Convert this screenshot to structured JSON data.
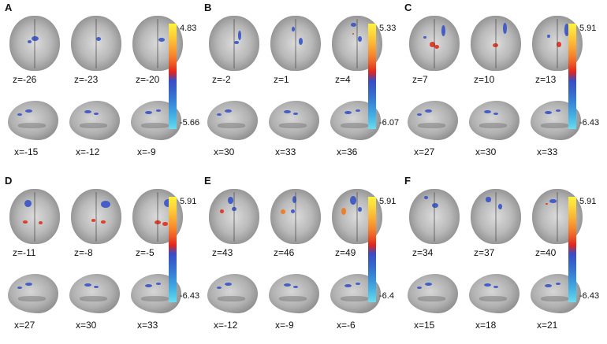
{
  "panels": [
    {
      "letter": "A",
      "axial_labels": [
        "z=-26",
        "z=-23",
        "z=-20"
      ],
      "sagittal_labels": [
        "x=-15",
        "x=-12",
        "x=-9"
      ],
      "colorbar": {
        "max": "4.83",
        "min": "-5.66"
      }
    },
    {
      "letter": "B",
      "axial_labels": [
        "z=-2",
        "z=1",
        "z=4"
      ],
      "sagittal_labels": [
        "x=30",
        "x=33",
        "x=36"
      ],
      "colorbar": {
        "max": "5.33",
        "min": "-6.07"
      }
    },
    {
      "letter": "C",
      "axial_labels": [
        "z=7",
        "z=10",
        "z=13"
      ],
      "sagittal_labels": [
        "x=27",
        "x=30",
        "x=33"
      ],
      "colorbar": {
        "max": "5.91",
        "min": "-6.43"
      }
    },
    {
      "letter": "D",
      "axial_labels": [
        "z=-11",
        "z=-8",
        "z=-5"
      ],
      "sagittal_labels": [
        "x=27",
        "x=30",
        "x=33"
      ],
      "colorbar": {
        "max": "5.91",
        "min": "-6.43"
      }
    },
    {
      "letter": "E",
      "axial_labels": [
        "z=43",
        "z=46",
        "z=49"
      ],
      "sagittal_labels": [
        "x=-12",
        "x=-9",
        "x=-6"
      ],
      "colorbar": {
        "max": "5.91",
        "min": "-6.4"
      }
    },
    {
      "letter": "F",
      "axial_labels": [
        "z=34",
        "z=37",
        "z=40"
      ],
      "sagittal_labels": [
        "x=15",
        "x=18",
        "x=21"
      ],
      "colorbar": {
        "max": "5.91",
        "min": "-6.43"
      }
    }
  ],
  "colors": {
    "positive_high": "#fff23c",
    "positive_low": "#e0251f",
    "negative_high": "#3a4cc4",
    "negative_low": "#6fdcef"
  }
}
